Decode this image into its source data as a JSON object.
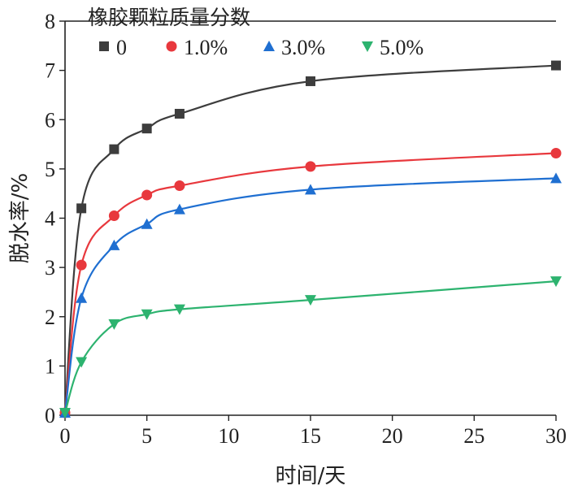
{
  "chart_data": {
    "type": "line",
    "title": "",
    "xlabel": "时间/天",
    "ylabel": "脱水率/%",
    "xlim": [
      0,
      30
    ],
    "ylim": [
      0,
      8
    ],
    "xticks": [
      0,
      5,
      10,
      15,
      20,
      25,
      30
    ],
    "yticks": [
      0,
      1,
      2,
      3,
      4,
      5,
      6,
      7,
      8
    ],
    "grid": false,
    "legend": {
      "title": "橡胶颗粒质量分数",
      "placement": "top-left"
    },
    "x": [
      0,
      1,
      3,
      5,
      7,
      15,
      30
    ],
    "series": [
      {
        "name": "0",
        "color": "#3d3d3d",
        "marker": "square",
        "values": [
          0.05,
          4.2,
          5.4,
          5.82,
          6.12,
          6.78,
          7.1
        ]
      },
      {
        "name": "1.0%",
        "color": "#e8383d",
        "marker": "circle",
        "values": [
          0.05,
          3.05,
          4.05,
          4.47,
          4.66,
          5.05,
          5.32
        ]
      },
      {
        "name": "3.0%",
        "color": "#1f6fd1",
        "marker": "triangle-up",
        "values": [
          0.05,
          2.38,
          3.45,
          3.88,
          4.18,
          4.58,
          4.81
        ]
      },
      {
        "name": "5.0%",
        "color": "#2db36f",
        "marker": "triangle-down",
        "values": [
          0.05,
          1.08,
          1.85,
          2.05,
          2.15,
          2.34,
          2.72
        ]
      }
    ]
  }
}
